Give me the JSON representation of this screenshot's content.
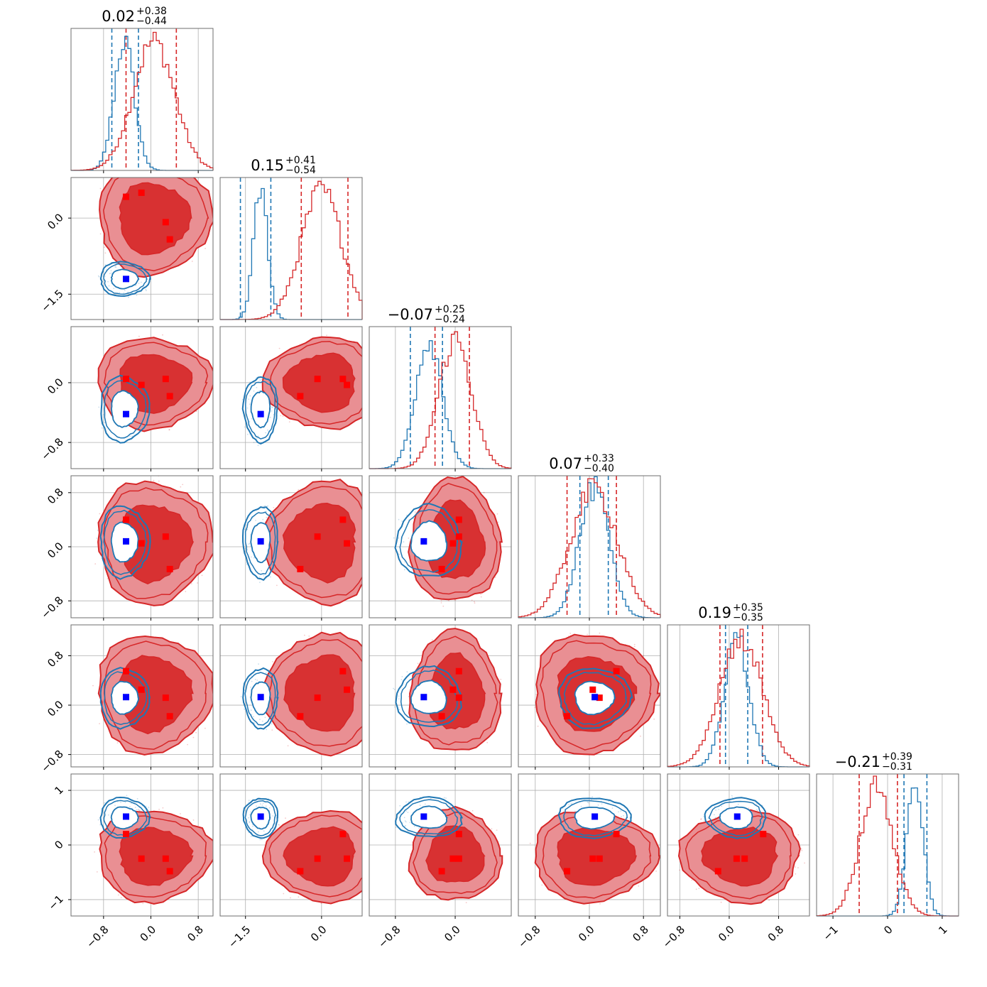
{
  "chart_data": {
    "type": "corner",
    "grid": true,
    "colors": {
      "red": "#d62728",
      "red_light": "#e98f93",
      "red_mid": "#e0585d",
      "blue": "#1f77b4",
      "blue_marker": "#0000ff",
      "red_marker": "#ff0000",
      "grid": "#b0b0b0"
    },
    "parameters": [
      {
        "title": {
          "main": "0.02",
          "plus": "+0.38",
          "minus": "−0.44"
        },
        "range": [
          -1.35,
          1.05
        ],
        "ticks": [
          -0.8,
          0.0,
          0.8
        ],
        "tick_labels": [
          "−0.8",
          "0.0",
          "0.8"
        ],
        "blue_hist": {
          "mu": -0.45,
          "sigma": 0.17
        },
        "red_hist": {
          "mu": 0.05,
          "sigma": 0.35
        },
        "blue_lines": [
          -0.66,
          -0.21
        ],
        "red_lines": [
          -0.42,
          0.43
        ],
        "red_modes": [
          -0.42,
          -0.16,
          0.25,
          0.32
        ],
        "blue_mode": -0.42
      },
      {
        "title": {
          "main": "0.15",
          "plus": "+0.41",
          "minus": "−0.54"
        },
        "range": [
          -2.0,
          0.8
        ],
        "ticks": [
          -1.5,
          0.0
        ],
        "tick_labels": [
          "−1.5",
          "0.0"
        ],
        "blue_hist": {
          "mu": -1.2,
          "sigma": 0.14
        },
        "red_hist": {
          "mu": 0.0,
          "sigma": 0.4
        },
        "blue_lines": [
          -1.6,
          -1.0
        ],
        "red_lines": [
          -0.4,
          0.52
        ],
        "red_modes": [
          0.42,
          0.5,
          -0.08,
          -0.42
        ],
        "blue_mode": -1.2
      },
      {
        "title": {
          "main": "−0.07",
          "plus": "+0.25",
          "minus": "−0.24"
        },
        "range": [
          -1.15,
          0.75
        ],
        "ticks": [
          -0.8,
          0.0
        ],
        "tick_labels": [
          "−0.8",
          "0.0"
        ],
        "blue_hist": {
          "mu": -0.35,
          "sigma": 0.18
        },
        "red_hist": {
          "mu": 0.0,
          "sigma": 0.22
        },
        "blue_lines": [
          -0.6,
          -0.17
        ],
        "red_lines": [
          -0.27,
          0.19
        ],
        "red_modes": [
          0.05,
          -0.03,
          0.05,
          -0.18,
          -0.18
        ],
        "blue_mode": -0.42
      },
      {
        "title": {
          "main": "0.07",
          "plus": "+0.33",
          "minus": "−0.40"
        },
        "range": [
          -1.05,
          1.05
        ],
        "ticks": [
          -0.8,
          0.0,
          0.8
        ],
        "tick_labels": [
          "−0.8",
          "0.0",
          "0.8"
        ],
        "blue_hist": {
          "mu": 0.07,
          "sigma": 0.22
        },
        "red_hist": {
          "mu": 0.07,
          "sigma": 0.35
        },
        "blue_lines": [
          -0.14,
          0.28
        ],
        "red_lines": [
          -0.33,
          0.4
        ],
        "red_modes": [
          0.4,
          0.05,
          0.15,
          -0.33
        ],
        "blue_mode": 0.08
      },
      {
        "title": {
          "main": "0.19",
          "plus": "+0.35",
          "minus": "−0.35"
        },
        "range": [
          -1.0,
          1.3
        ],
        "ticks": [
          -0.8,
          0.0,
          0.8
        ],
        "tick_labels": [
          "−0.8",
          "0.0",
          "0.8"
        ],
        "blue_hist": {
          "mu": 0.12,
          "sigma": 0.2
        },
        "red_hist": {
          "mu": 0.19,
          "sigma": 0.35
        },
        "blue_lines": [
          -0.06,
          0.3
        ],
        "red_lines": [
          -0.15,
          0.54
        ],
        "red_modes": [
          0.55,
          0.25,
          0.12,
          -0.18
        ],
        "blue_mode": 0.13
      },
      {
        "title": {
          "main": "−0.21",
          "plus": "+0.39",
          "minus": "−0.31"
        },
        "range": [
          -1.3,
          1.3
        ],
        "ticks": [
          -1,
          0,
          1
        ],
        "tick_labels": [
          "−1",
          "0",
          "1"
        ],
        "blue_hist": {
          "mu": 0.5,
          "sigma": 0.15
        },
        "red_hist": {
          "mu": -0.2,
          "sigma": 0.3
        },
        "blue_lines": [
          0.3,
          0.72
        ],
        "red_lines": [
          -0.52,
          0.18
        ],
        "red_modes": [
          0.2,
          -0.25,
          -0.25,
          -0.48
        ],
        "blue_mode": 0.52
      }
    ]
  }
}
